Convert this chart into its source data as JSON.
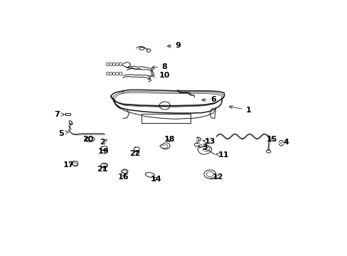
{
  "background_color": "#ffffff",
  "line_color": "#1a1a1a",
  "text_color": "#000000",
  "font_size": 8,
  "labels": {
    "1": {
      "txt": [
        0.76,
        0.598
      ],
      "arrow": [
        0.68,
        0.618
      ]
    },
    "2": {
      "txt": [
        0.218,
        0.435
      ],
      "arrow": [
        0.238,
        0.448
      ]
    },
    "3": {
      "txt": [
        0.6,
        0.408
      ],
      "arrow": [
        0.572,
        0.42
      ]
    },
    "4": {
      "txt": [
        0.9,
        0.435
      ],
      "arrow": [
        0.885,
        0.428
      ]
    },
    "5": {
      "txt": [
        0.065,
        0.478
      ],
      "arrow": [
        0.095,
        0.488
      ]
    },
    "6": {
      "txt": [
        0.63,
        0.65
      ],
      "arrow": [
        0.578,
        0.648
      ]
    },
    "7": {
      "txt": [
        0.05,
        0.575
      ],
      "arrow": [
        0.08,
        0.575
      ]
    },
    "8": {
      "txt": [
        0.448,
        0.818
      ],
      "arrow": [
        0.392,
        0.812
      ]
    },
    "9": {
      "txt": [
        0.5,
        0.925
      ],
      "arrow": [
        0.45,
        0.92
      ]
    },
    "10": {
      "txt": [
        0.448,
        0.775
      ],
      "arrow": [
        0.39,
        0.772
      ]
    },
    "11": {
      "txt": [
        0.668,
        0.368
      ],
      "arrow": [
        0.638,
        0.375
      ]
    },
    "12": {
      "txt": [
        0.648,
        0.258
      ],
      "arrow": [
        0.628,
        0.268
      ]
    },
    "13": {
      "txt": [
        0.618,
        0.438
      ],
      "arrow": [
        0.59,
        0.442
      ]
    },
    "14": {
      "txt": [
        0.418,
        0.248
      ],
      "arrow": [
        0.4,
        0.262
      ]
    },
    "15": {
      "txt": [
        0.848,
        0.448
      ],
      "arrow": [
        0.848,
        0.462
      ]
    },
    "16": {
      "txt": [
        0.296,
        0.258
      ],
      "arrow": [
        0.306,
        0.272
      ]
    },
    "17": {
      "txt": [
        0.092,
        0.318
      ],
      "arrow": [
        0.118,
        0.325
      ]
    },
    "18": {
      "txt": [
        0.468,
        0.448
      ],
      "arrow": [
        0.468,
        0.432
      ]
    },
    "19": {
      "txt": [
        0.222,
        0.388
      ],
      "arrow": [
        0.232,
        0.398
      ]
    },
    "20": {
      "txt": [
        0.165,
        0.448
      ],
      "arrow": [
        0.178,
        0.435
      ]
    },
    "21": {
      "txt": [
        0.218,
        0.298
      ],
      "arrow": [
        0.228,
        0.312
      ]
    },
    "22": {
      "txt": [
        0.34,
        0.378
      ],
      "arrow": [
        0.35,
        0.392
      ]
    }
  }
}
